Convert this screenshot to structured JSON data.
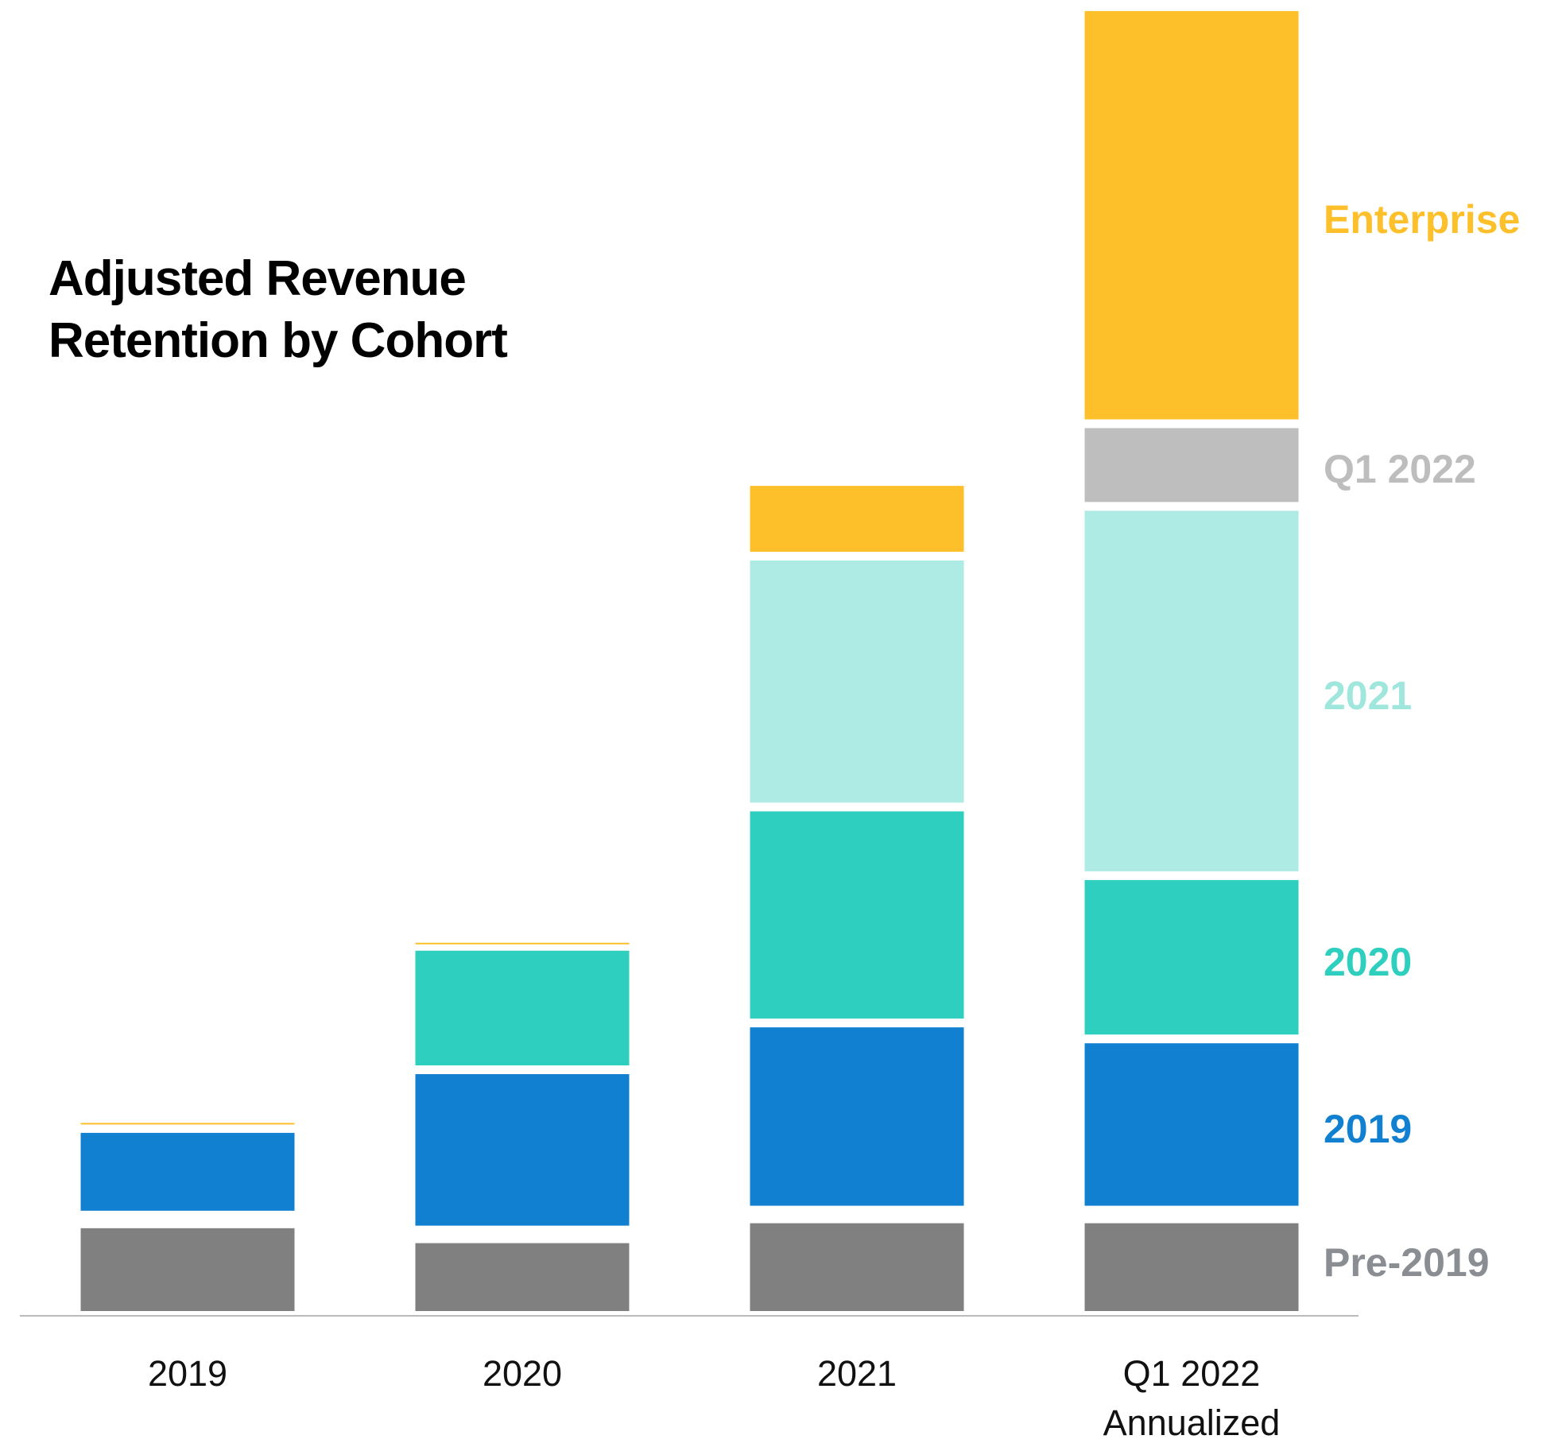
{
  "chart_data": {
    "type": "stacked_bar",
    "title": "Adjusted Revenue Retention by Cohort",
    "categories": [
      "2019",
      "2020",
      "2021",
      "Q1 2022\nAnnualized"
    ],
    "series": [
      {
        "name": "Pre-2019",
        "color": "#808080",
        "label_color": "#8a8d92",
        "values": [
          9.2,
          7.7,
          9.7,
          9.7
        ]
      },
      {
        "name": "2019",
        "color": "#1180d0",
        "label_color": "#1280d0",
        "values": [
          8.7,
          16.1,
          18.8,
          17.2
        ]
      },
      {
        "name": "2020",
        "color": "#2fcfbf",
        "label_color": "#2ecfbf",
        "values": [
          null,
          12.4,
          21.7,
          16.4
        ]
      },
      {
        "name": "2021",
        "color": "#aeebe5",
        "label_color": "#9fe6dd",
        "values": [
          null,
          null,
          25.2,
          37.1
        ]
      },
      {
        "name": "Q1 2022",
        "color": "#bebebe",
        "label_color": "#bdbdbd",
        "values": [
          null,
          null,
          null,
          8.3
        ]
      },
      {
        "name": "Enterprise",
        "color": "#fdbf2a",
        "label_color": "#fdbf2a",
        "values": [
          1.0,
          0.8,
          7.5,
          41.9
        ]
      }
    ]
  }
}
